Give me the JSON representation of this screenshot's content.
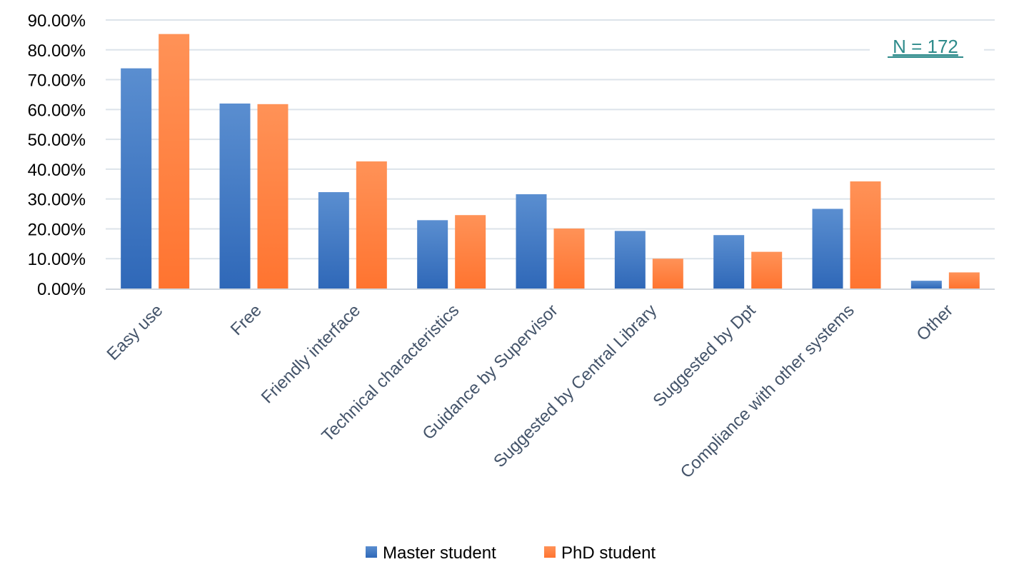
{
  "chart_data": {
    "type": "bar",
    "categories": [
      "Easy use",
      "Free",
      "Friendly interface",
      "Technical characteristics",
      "Guidance by Supervisor",
      "Suggested by Central Library",
      "Suggested by Dpt",
      "Compliance with other systems",
      "Other"
    ],
    "series": [
      {
        "name": "Master student",
        "color": "#2F68B8",
        "color_light": "#5A8ED0",
        "values": [
          73.8,
          62.0,
          32.3,
          22.9,
          31.6,
          19.3,
          17.9,
          26.7,
          2.6
        ]
      },
      {
        "name": "PhD student",
        "color": "#FF7430",
        "color_light": "#FF9257",
        "values": [
          85.3,
          61.8,
          42.6,
          24.6,
          20.1,
          10.0,
          12.3,
          35.9,
          5.4
        ]
      }
    ],
    "ylim": [
      0,
      90
    ],
    "ytick_step": 10,
    "ytick_labels": [
      "0.00%",
      "10.00%",
      "20.00%",
      "30.00%",
      "40.00%",
      "50.00%",
      "60.00%",
      "70.00%",
      "80.00%",
      "90.00%"
    ],
    "grid": true,
    "legend_position": "bottom",
    "annotation": "N = 172",
    "title": "",
    "xlabel": "",
    "ylabel": ""
  }
}
